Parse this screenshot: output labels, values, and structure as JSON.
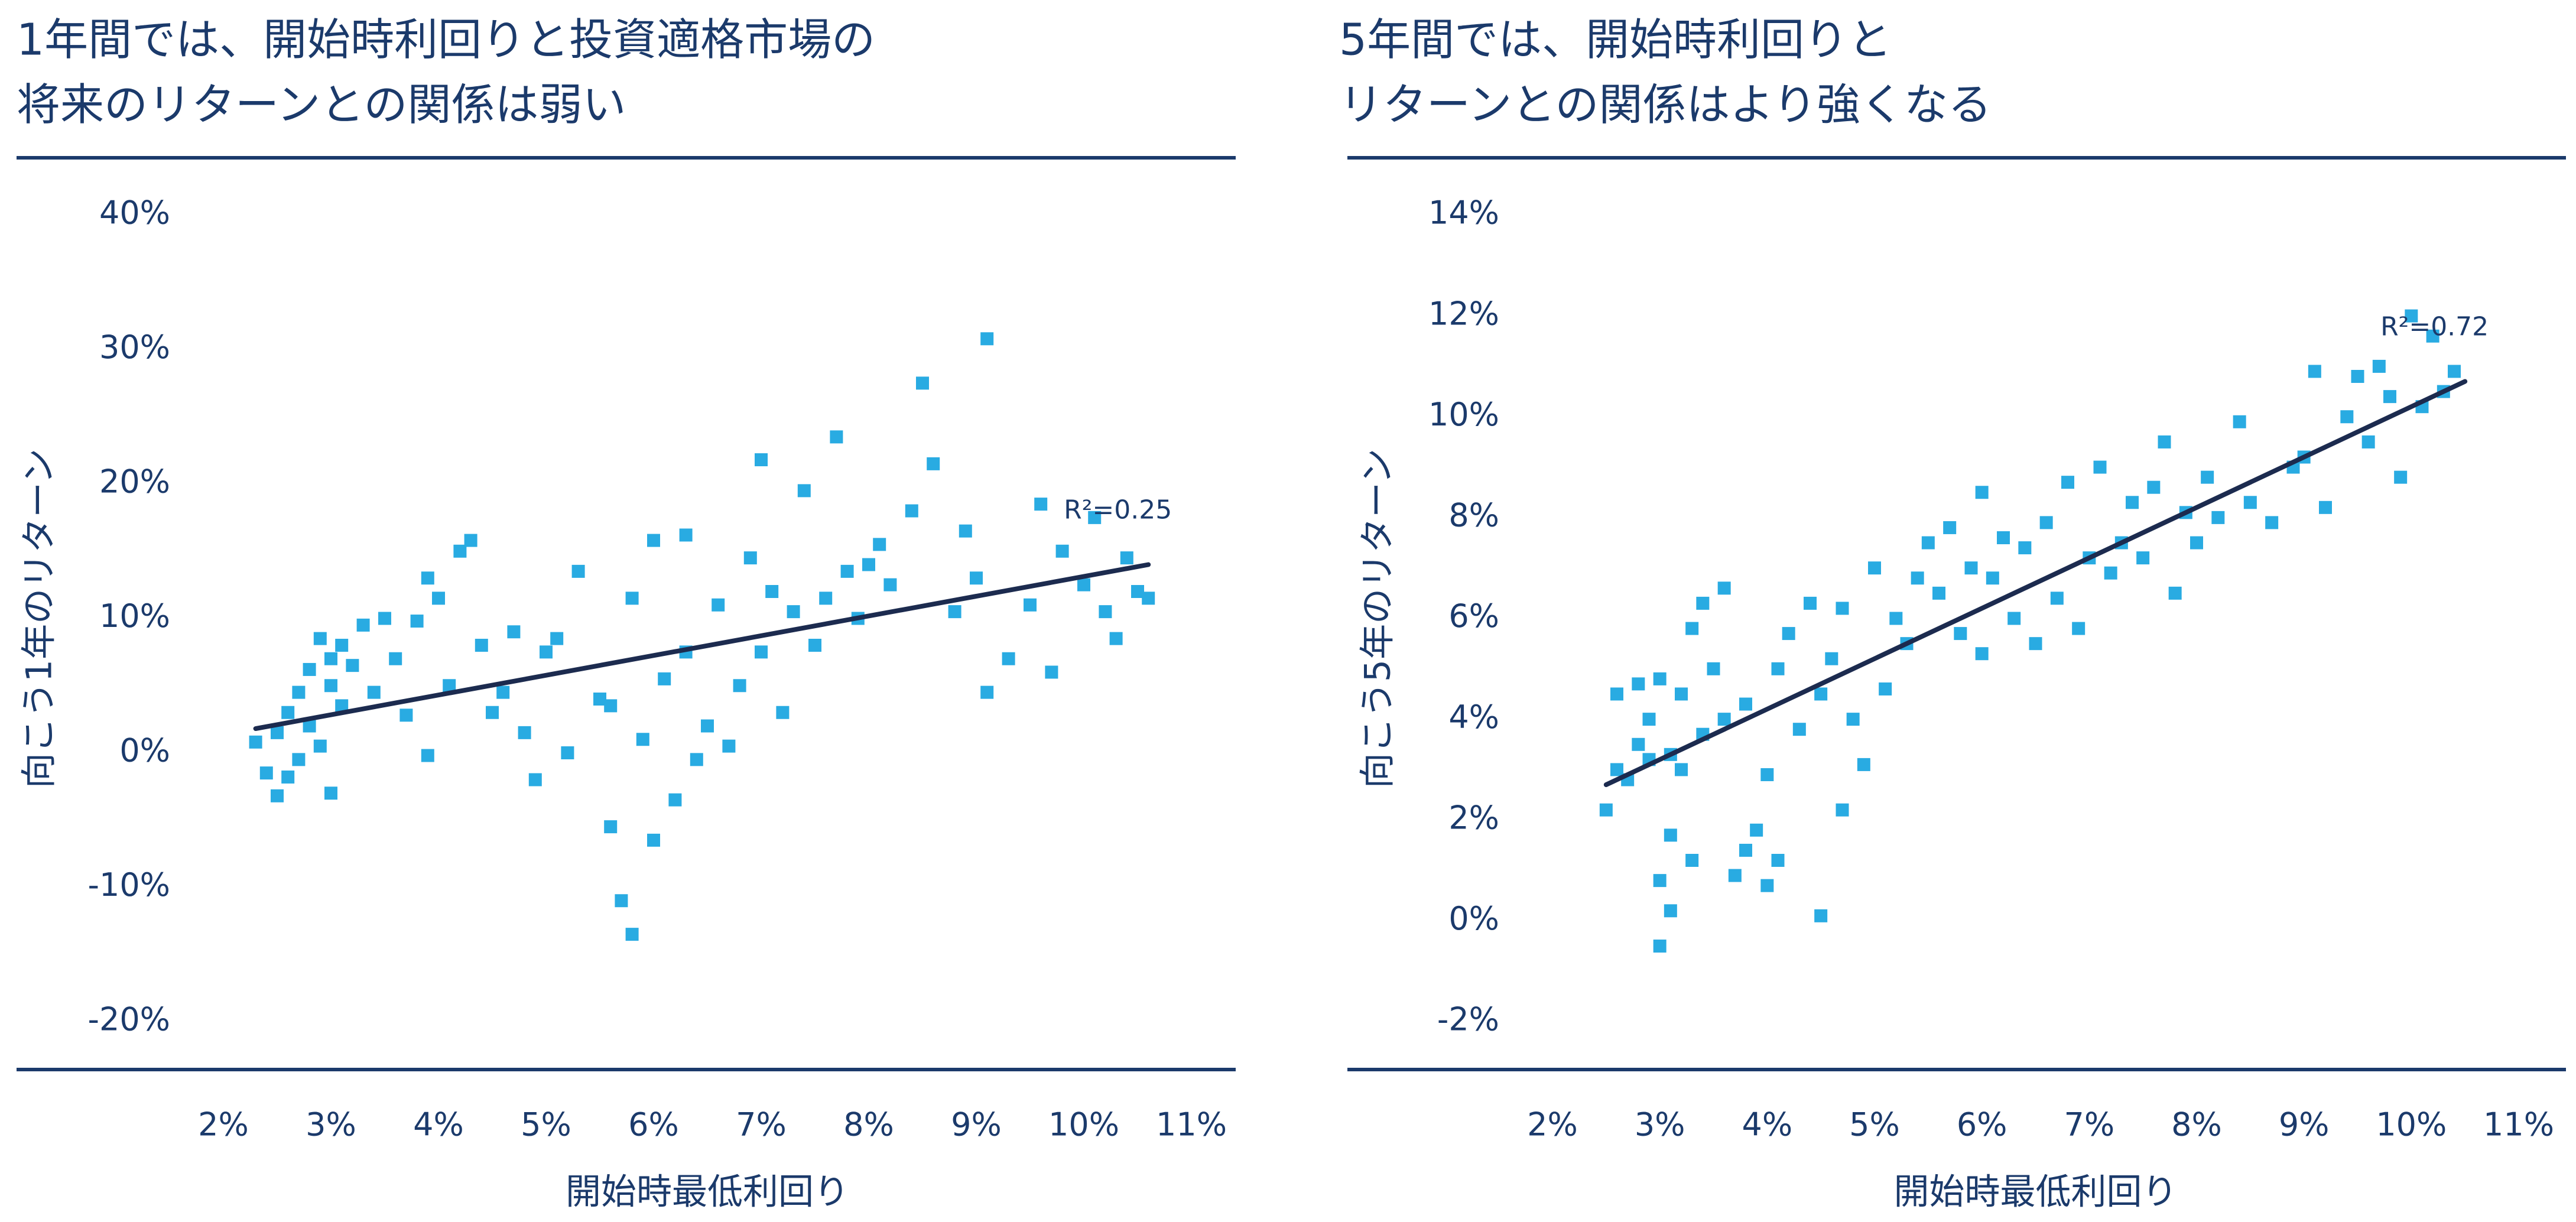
{
  "chart_data": [
    {
      "type": "scatter",
      "title": [
        "1年間では、開始時利回りと投資適格市場の",
        "将来のリターンとの関係は弱い"
      ],
      "x_label": "開始時最低利回り",
      "y_label": "向こう1年のリターン",
      "color": "#29abe2",
      "xlim": [
        2,
        11
      ],
      "ylim": [
        -20,
        40
      ],
      "xticks": [
        {
          "value": 2,
          "label": "2%"
        },
        {
          "value": 3,
          "label": "3%"
        },
        {
          "value": 4,
          "label": "4%"
        },
        {
          "value": 5,
          "label": "5%"
        },
        {
          "value": 6,
          "label": "6%"
        },
        {
          "value": 7,
          "label": "7%"
        },
        {
          "value": 8,
          "label": "8%"
        },
        {
          "value": 9,
          "label": "9%"
        },
        {
          "value": 10,
          "label": "10%"
        },
        {
          "value": 11,
          "label": "11%"
        }
      ],
      "yticks": [
        {
          "value": -20,
          "label": "-20%"
        },
        {
          "value": -10,
          "label": "-10%"
        },
        {
          "value": 0,
          "label": "0%"
        },
        {
          "value": 10,
          "label": "10%"
        },
        {
          "value": 20,
          "label": "20%"
        },
        {
          "value": 30,
          "label": "30%"
        },
        {
          "value": 40,
          "label": "40%"
        }
      ],
      "x": [
        2.3,
        2.4,
        2.5,
        2.5,
        2.6,
        2.6,
        2.7,
        2.7,
        2.8,
        2.8,
        2.9,
        2.9,
        3.0,
        3.0,
        3.0,
        3.1,
        3.1,
        3.2,
        3.3,
        3.4,
        3.5,
        3.6,
        3.7,
        3.8,
        3.9,
        3.9,
        4.0,
        4.1,
        4.2,
        4.3,
        4.4,
        4.5,
        4.6,
        4.7,
        4.8,
        4.9,
        5.0,
        5.1,
        5.2,
        5.3,
        5.5,
        5.6,
        5.6,
        5.7,
        5.8,
        5.8,
        5.9,
        6.0,
        6.0,
        6.1,
        6.2,
        6.3,
        6.3,
        6.4,
        6.5,
        6.6,
        6.7,
        6.8,
        6.9,
        7.0,
        7.0,
        7.1,
        7.2,
        7.3,
        7.4,
        7.5,
        7.6,
        7.7,
        7.8,
        7.9,
        8.0,
        8.1,
        8.2,
        8.4,
        8.5,
        8.6,
        8.8,
        8.9,
        9.0,
        9.1,
        9.1,
        9.3,
        9.5,
        9.6,
        9.7,
        9.8,
        10.0,
        10.1,
        10.2,
        10.3,
        10.4,
        10.5,
        10.6
      ],
      "values": [
        0.8,
        -1.5,
        -3.2,
        1.5,
        -1.8,
        3.0,
        4.5,
        -0.5,
        6.2,
        2.0,
        8.5,
        0.5,
        -3.0,
        5.0,
        7.0,
        3.5,
        8.0,
        6.5,
        9.5,
        4.5,
        10.0,
        7.0,
        2.8,
        9.8,
        13.0,
        -0.2,
        11.5,
        5.0,
        15.0,
        15.8,
        8.0,
        3.0,
        4.5,
        9.0,
        1.5,
        -2.0,
        7.5,
        8.5,
        0.0,
        13.5,
        4.0,
        -5.5,
        3.5,
        -11.0,
        -13.5,
        11.5,
        1.0,
        -6.5,
        15.8,
        5.5,
        -3.5,
        7.5,
        16.2,
        -0.5,
        2.0,
        11.0,
        0.5,
        5.0,
        14.5,
        7.5,
        21.8,
        12.0,
        3.0,
        10.5,
        19.5,
        8.0,
        11.5,
        23.5,
        13.5,
        10.0,
        14.0,
        15.5,
        12.5,
        18.0,
        27.5,
        21.5,
        10.5,
        16.5,
        13.0,
        30.8,
        4.5,
        7.0,
        11.0,
        18.5,
        6.0,
        15.0,
        12.5,
        17.5,
        10.5,
        8.5,
        14.5,
        12.0,
        11.5
      ],
      "trend": {
        "x": [
          2.3,
          10.6
        ],
        "values": [
          1.8,
          14.0
        ],
        "color": "#1c2b4f"
      },
      "annotation": "R²=0.25"
    },
    {
      "type": "scatter",
      "title": [
        "5年間では、開始時利回りと",
        "リターンとの関係はより強くなる"
      ],
      "x_label": "開始時最低利回り",
      "y_label": "向こう5年のリターン",
      "color": "#29abe2",
      "xlim": [
        2,
        11
      ],
      "ylim": [
        -2,
        14
      ],
      "xticks": [
        {
          "value": 2,
          "label": "2%"
        },
        {
          "value": 3,
          "label": "3%"
        },
        {
          "value": 4,
          "label": "4%"
        },
        {
          "value": 5,
          "label": "5%"
        },
        {
          "value": 6,
          "label": "6%"
        },
        {
          "value": 7,
          "label": "7%"
        },
        {
          "value": 8,
          "label": "8%"
        },
        {
          "value": 9,
          "label": "9%"
        },
        {
          "value": 10,
          "label": "10%"
        },
        {
          "value": 11,
          "label": "11%"
        }
      ],
      "yticks": [
        {
          "value": -2,
          "label": "-2%"
        },
        {
          "value": 0,
          "label": "0%"
        },
        {
          "value": 2,
          "label": "2%"
        },
        {
          "value": 4,
          "label": "4%"
        },
        {
          "value": 6,
          "label": "6%"
        },
        {
          "value": 8,
          "label": "8%"
        },
        {
          "value": 10,
          "label": "10%"
        },
        {
          "value": 12,
          "label": "12%"
        },
        {
          "value": 14,
          "label": "14%"
        }
      ],
      "x": [
        2.5,
        2.6,
        2.6,
        2.7,
        2.8,
        2.8,
        2.9,
        2.9,
        3.0,
        3.0,
        3.0,
        3.1,
        3.1,
        3.1,
        3.2,
        3.2,
        3.3,
        3.3,
        3.4,
        3.4,
        3.5,
        3.6,
        3.6,
        3.7,
        3.8,
        3.8,
        3.9,
        4.0,
        4.0,
        4.1,
        4.1,
        4.2,
        4.3,
        4.4,
        4.5,
        4.5,
        4.6,
        4.7,
        4.7,
        4.8,
        4.9,
        5.0,
        5.1,
        5.2,
        5.3,
        5.4,
        5.5,
        5.6,
        5.7,
        5.8,
        5.9,
        6.0,
        6.0,
        6.1,
        6.2,
        6.3,
        6.4,
        6.5,
        6.6,
        6.7,
        6.8,
        6.9,
        7.0,
        7.1,
        7.2,
        7.3,
        7.4,
        7.5,
        7.6,
        7.7,
        7.8,
        7.9,
        8.0,
        8.1,
        8.2,
        8.4,
        8.5,
        8.7,
        8.9,
        9.0,
        9.1,
        9.2,
        9.4,
        9.5,
        9.6,
        9.7,
        9.8,
        9.9,
        10.0,
        10.1,
        10.2,
        10.3,
        10.4
      ],
      "values": [
        2.2,
        3.0,
        4.5,
        2.8,
        3.5,
        4.7,
        3.2,
        4.0,
        -0.5,
        0.8,
        4.8,
        1.7,
        0.2,
        3.3,
        4.5,
        3.0,
        5.8,
        1.2,
        6.3,
        3.7,
        5.0,
        6.6,
        4.0,
        0.9,
        1.4,
        4.3,
        1.8,
        2.9,
        0.7,
        5.0,
        1.2,
        5.7,
        3.8,
        6.3,
        0.1,
        4.5,
        5.2,
        6.2,
        2.2,
        4.0,
        3.1,
        7.0,
        4.6,
        6.0,
        5.5,
        6.8,
        7.5,
        6.5,
        7.8,
        5.7,
        7.0,
        8.5,
        5.3,
        6.8,
        7.6,
        6.0,
        7.4,
        5.5,
        7.9,
        6.4,
        8.7,
        5.8,
        7.2,
        9.0,
        6.9,
        7.5,
        8.3,
        7.2,
        8.6,
        9.5,
        6.5,
        8.1,
        7.5,
        8.8,
        8.0,
        9.9,
        8.3,
        7.9,
        9.0,
        9.2,
        10.9,
        8.2,
        10.0,
        10.8,
        9.5,
        11.0,
        10.4,
        8.8,
        12.0,
        10.2,
        11.6,
        10.5,
        10.9
      ],
      "trend": {
        "x": [
          2.5,
          10.5
        ],
        "values": [
          2.7,
          10.7
        ],
        "color": "#1c2b4f"
      },
      "annotation": "R²=0.72"
    }
  ]
}
